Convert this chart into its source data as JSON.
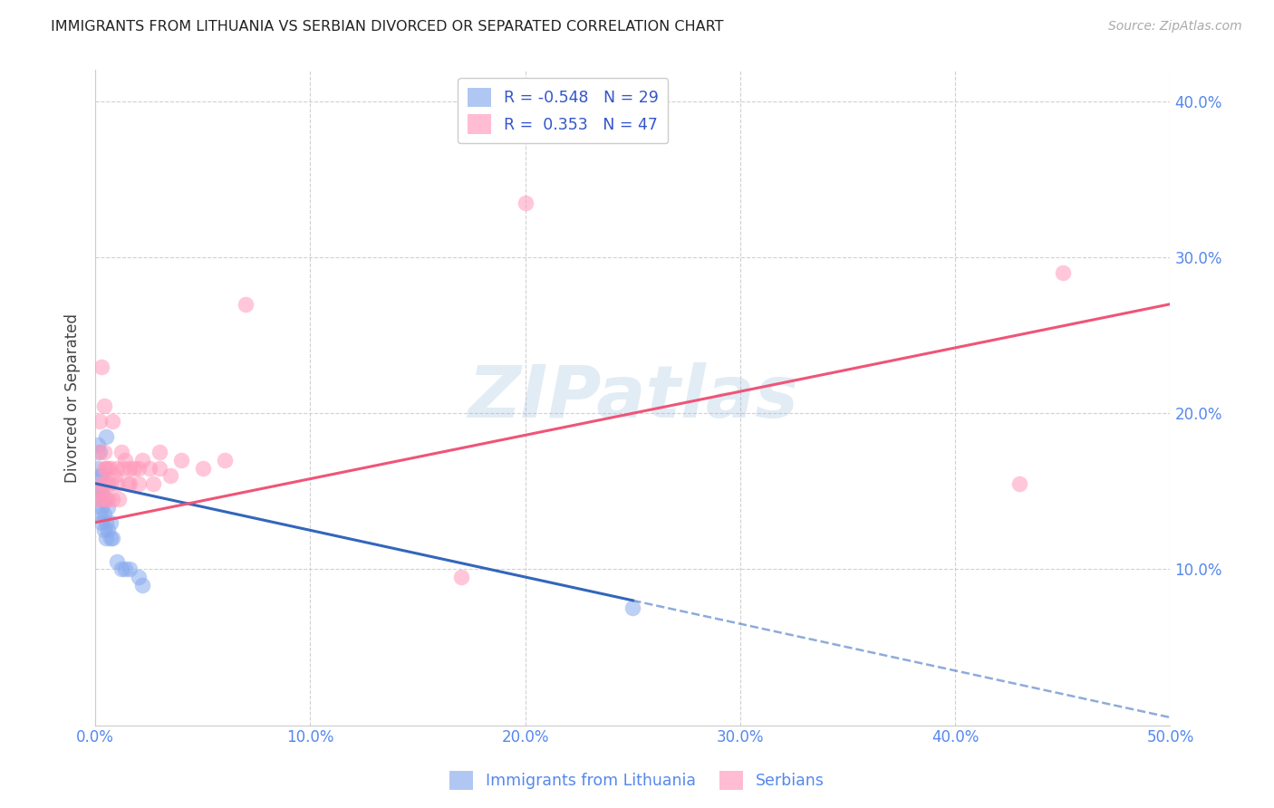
{
  "title": "IMMIGRANTS FROM LITHUANIA VS SERBIAN DIVORCED OR SEPARATED CORRELATION CHART",
  "source": "Source: ZipAtlas.com",
  "xlabel": "",
  "ylabel": "Divorced or Separated",
  "watermark": "ZIPatlas",
  "xmin": 0.0,
  "xmax": 0.5,
  "ymin": 0.0,
  "ymax": 0.42,
  "xtick_vals": [
    0.0,
    0.1,
    0.2,
    0.3,
    0.4,
    0.5
  ],
  "ytick_vals": [
    0.1,
    0.2,
    0.3,
    0.4
  ],
  "grid_color": "#cccccc",
  "background_color": "#ffffff",
  "blue_color": "#88aaee",
  "pink_color": "#ff99bb",
  "blue_line_color": "#3366bb",
  "pink_line_color": "#ee5577",
  "R_blue": -0.548,
  "N_blue": 29,
  "R_pink": 0.353,
  "N_pink": 47,
  "legend_label_blue": "Immigrants from Lithuania",
  "legend_label_pink": "Serbians",
  "blue_points_x": [
    0.001,
    0.001,
    0.001,
    0.002,
    0.002,
    0.002,
    0.002,
    0.003,
    0.003,
    0.003,
    0.003,
    0.004,
    0.004,
    0.004,
    0.005,
    0.005,
    0.005,
    0.006,
    0.006,
    0.007,
    0.007,
    0.008,
    0.01,
    0.012,
    0.014,
    0.016,
    0.02,
    0.022,
    0.25
  ],
  "blue_points_y": [
    0.15,
    0.165,
    0.18,
    0.135,
    0.145,
    0.16,
    0.175,
    0.13,
    0.14,
    0.15,
    0.16,
    0.125,
    0.135,
    0.145,
    0.12,
    0.13,
    0.185,
    0.125,
    0.14,
    0.12,
    0.13,
    0.12,
    0.105,
    0.1,
    0.1,
    0.1,
    0.095,
    0.09,
    0.075
  ],
  "pink_points_x": [
    0.001,
    0.001,
    0.002,
    0.002,
    0.003,
    0.003,
    0.003,
    0.004,
    0.004,
    0.004,
    0.004,
    0.005,
    0.005,
    0.006,
    0.006,
    0.006,
    0.007,
    0.007,
    0.008,
    0.008,
    0.009,
    0.01,
    0.01,
    0.011,
    0.012,
    0.013,
    0.014,
    0.015,
    0.016,
    0.016,
    0.018,
    0.02,
    0.02,
    0.022,
    0.025,
    0.027,
    0.03,
    0.03,
    0.035,
    0.04,
    0.05,
    0.06,
    0.07,
    0.17,
    0.2,
    0.43,
    0.45
  ],
  "pink_points_y": [
    0.145,
    0.175,
    0.15,
    0.195,
    0.145,
    0.155,
    0.23,
    0.155,
    0.165,
    0.175,
    0.205,
    0.145,
    0.165,
    0.145,
    0.155,
    0.165,
    0.155,
    0.165,
    0.145,
    0.195,
    0.16,
    0.155,
    0.165,
    0.145,
    0.175,
    0.165,
    0.17,
    0.155,
    0.155,
    0.165,
    0.165,
    0.155,
    0.165,
    0.17,
    0.165,
    0.155,
    0.165,
    0.175,
    0.16,
    0.17,
    0.165,
    0.17,
    0.27,
    0.095,
    0.335,
    0.155,
    0.29
  ],
  "blue_line_x_start": 0.0,
  "blue_line_x_solid_end": 0.25,
  "blue_line_x_dashed_end": 0.5,
  "blue_line_y_start": 0.155,
  "blue_line_y_solid_end": 0.08,
  "blue_line_y_dashed_end": 0.005,
  "pink_line_x_start": 0.0,
  "pink_line_x_end": 0.5,
  "pink_line_y_start": 0.13,
  "pink_line_y_end": 0.27
}
